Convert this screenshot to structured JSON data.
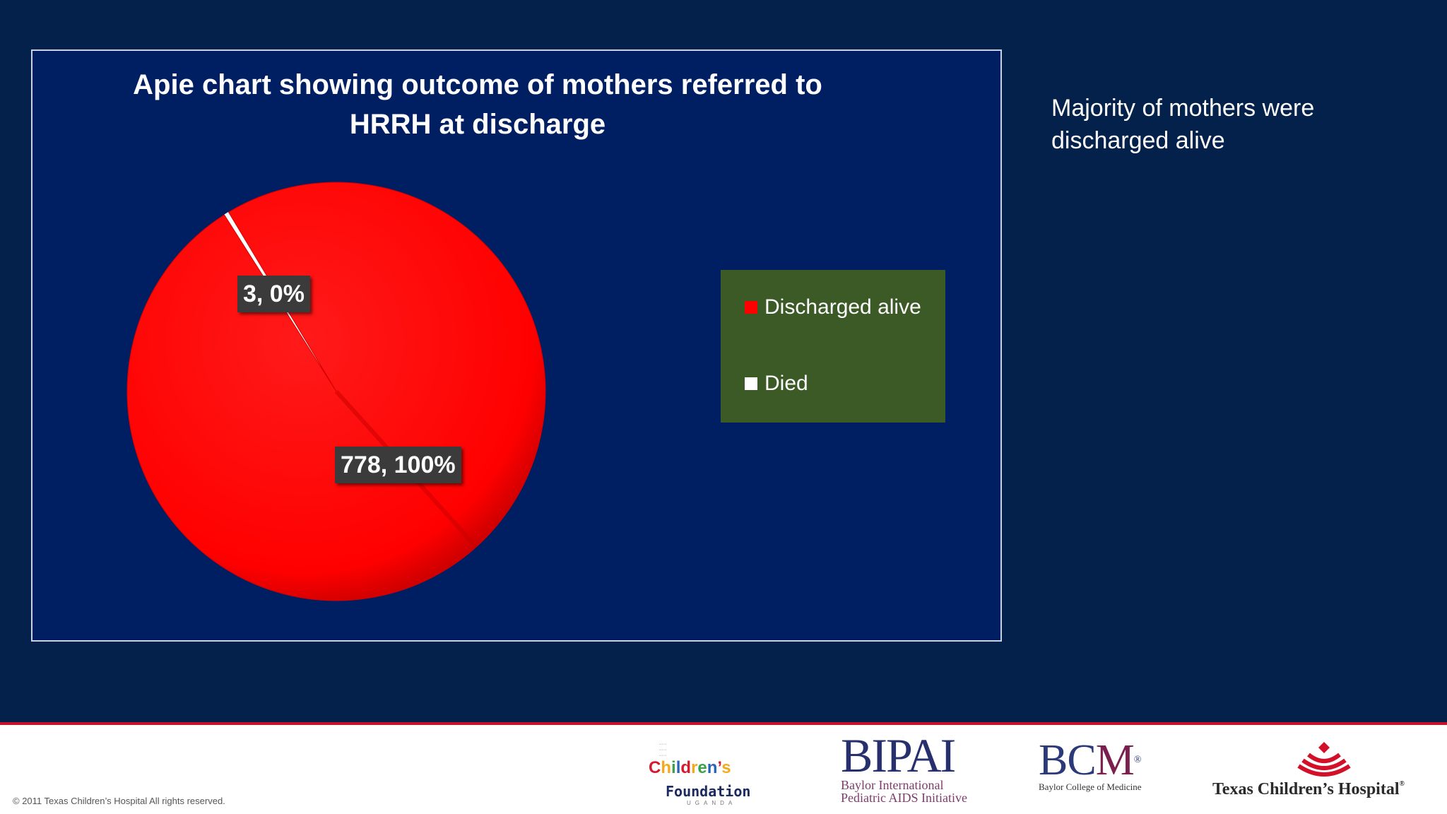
{
  "chart_data": {
    "type": "pie",
    "title": "Apie chart showing outcome of mothers referred to HRRH at discharge",
    "slices": [
      {
        "name": "Discharged alive",
        "value": 778,
        "label": "778, 100%",
        "color": "#ff0000"
      },
      {
        "name": "Died",
        "value": 3,
        "label": "3, 0%",
        "color": "#ffffff"
      }
    ],
    "legend": {
      "position": "right",
      "entries": [
        "Discharged alive",
        "Died"
      ]
    },
    "legend_background": "#3c5a26",
    "plot_background": "#001f62"
  },
  "side_note": "Majority of mothers were discharged alive",
  "footer": {
    "copyright": "© 2011 Texas Children’s Hospital All rights reserved.",
    "logos": {
      "childrens_foundation": {
        "line1": "Children’s",
        "line2": "Foundation",
        "line3": "UGANDA"
      },
      "bipai": {
        "main": "BIPAI",
        "sub1": "Baylor International",
        "sub2": "Pediatric AIDS Initiative"
      },
      "bcm": {
        "main_b": "BC",
        "main_m": "M",
        "mark": "®",
        "sub": "Baylor College of Medicine"
      },
      "tch": {
        "name": "Texas Children’s Hospital",
        "mark": "®"
      }
    }
  },
  "colors": {
    "background": "#03214a",
    "accent": "#c5122b"
  }
}
